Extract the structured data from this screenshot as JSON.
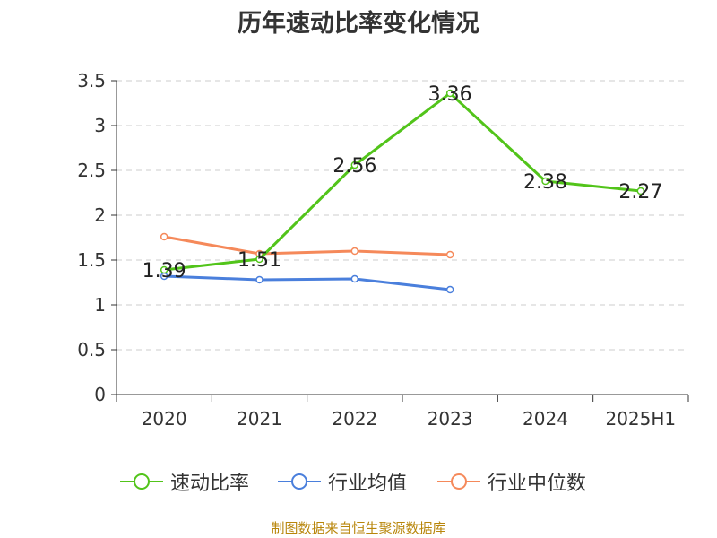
{
  "title": "历年速动比率变化情况",
  "source": "制图数据来自恒生聚源数据库",
  "colors": {
    "quick_ratio": "#52c41a",
    "industry_mean": "#4a7fdc",
    "industry_median": "#f5895a",
    "grid": "#cccccc",
    "axis": "#333333"
  },
  "chart_data": {
    "type": "line",
    "title": "历年速动比率变化情况",
    "xlabel": "",
    "ylabel": "",
    "categories": [
      "2020",
      "2021",
      "2022",
      "2023",
      "2024",
      "2025H1"
    ],
    "ylim": [
      0,
      3.5
    ],
    "yticks": [
      "0",
      "0.5",
      "1",
      "1.5",
      "2",
      "2.5",
      "3",
      "3.5"
    ],
    "grid": true,
    "legend_position": "bottom",
    "series": [
      {
        "name": "速动比率",
        "color": "#52c41a",
        "values": [
          1.39,
          1.51,
          2.56,
          3.36,
          2.38,
          2.27
        ],
        "labels": [
          "1.39",
          "1.51",
          "2.56",
          "3.36",
          "2.38",
          "2.27"
        ]
      },
      {
        "name": "行业均值",
        "color": "#4a7fdc",
        "values": [
          1.32,
          1.28,
          1.29,
          1.17,
          null,
          null
        ]
      },
      {
        "name": "行业中位数",
        "color": "#f5895a",
        "values": [
          1.76,
          1.57,
          1.6,
          1.56,
          null,
          null
        ]
      }
    ]
  }
}
